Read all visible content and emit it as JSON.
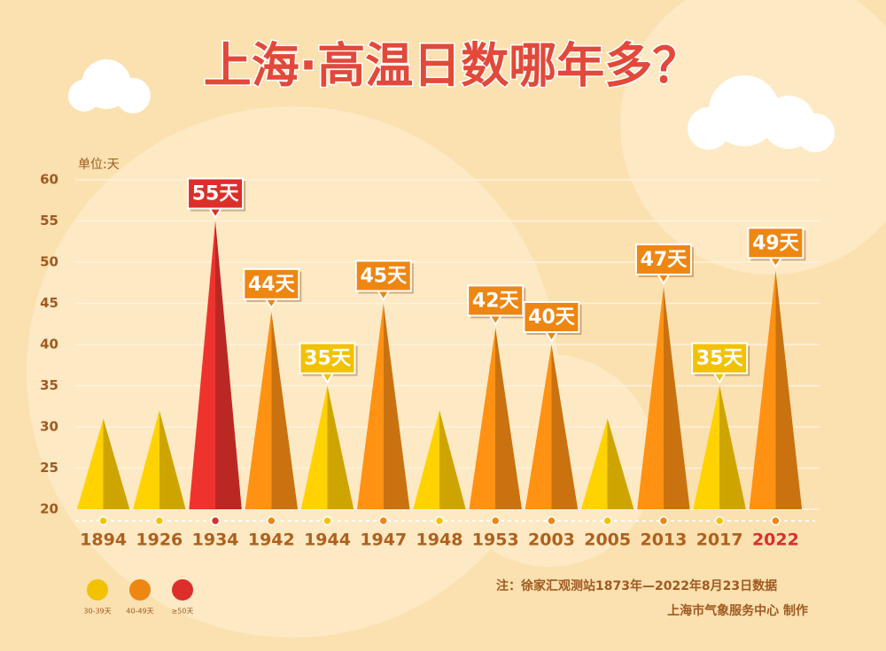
{
  "chart_data": {
    "type": "peak",
    "title": "上海·高温日数哪年多？",
    "unit_label": "单位:天",
    "categories": [
      "1894",
      "1926",
      "1934",
      "1942",
      "1944",
      "1947",
      "1948",
      "1953",
      "2003",
      "2005",
      "2013",
      "2017",
      "2022"
    ],
    "values": [
      31,
      32,
      55,
      44,
      35,
      45,
      32,
      42,
      40,
      31,
      47,
      35,
      49
    ],
    "value_labels": [
      null,
      null,
      "55天",
      "44天",
      "35天",
      "45天",
      null,
      "42天",
      "40天",
      null,
      "47天",
      "35天",
      "49天"
    ],
    "colors": [
      "#f2c200",
      "#f2c200",
      "#dc2f2a",
      "#ee8612",
      "#f2c200",
      "#ee8612",
      "#f2c200",
      "#ee8612",
      "#ee8612",
      "#f2c200",
      "#ee8612",
      "#f2c200",
      "#ee8612"
    ],
    "ylim": [
      20,
      60
    ],
    "yticks": [
      20,
      25,
      30,
      35,
      40,
      45,
      50,
      55,
      60
    ],
    "grid": true,
    "legend": [
      {
        "label": "30-39天",
        "color": "#f2c200"
      },
      {
        "label": "40-49天",
        "color": "#ee8612"
      },
      {
        "label": "≥50天",
        "color": "#dc2f2a"
      }
    ],
    "notes": [
      "注：徐家汇观测站1873年—2022年8月23日数据",
      "上海市气象服务中心 制作"
    ]
  }
}
